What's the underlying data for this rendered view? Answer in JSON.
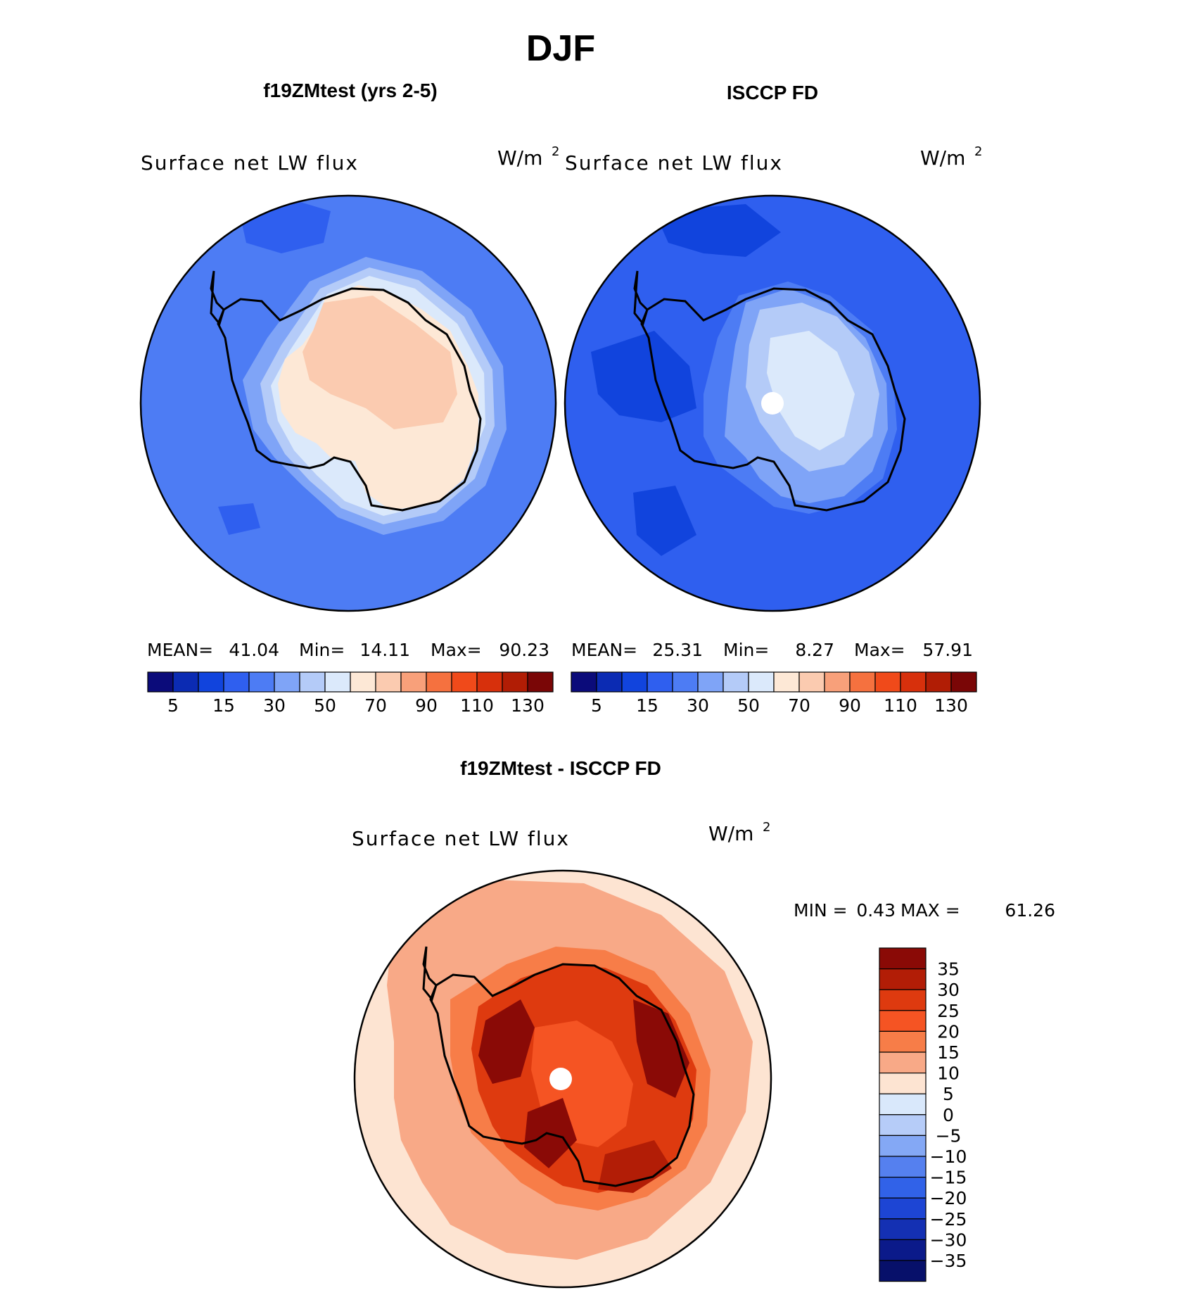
{
  "chart_data": {
    "type": "polar-contour-maps",
    "season": "DJF",
    "variable": "Surface net LW flux",
    "units_prefix": "W/m",
    "units_exp": "2",
    "region": "Antarctica, south polar stereographic",
    "panels": [
      {
        "title": "f19ZMtest (yrs 2-5)",
        "stats": {
          "mean_label": "MEAN=",
          "mean": "41.04",
          "min_label": "Min=",
          "min": "14.11",
          "max_label": "Max=",
          "max": "90.23"
        },
        "ocean_value": 40,
        "continent_value": 70
      },
      {
        "title": "ISCCP FD",
        "stats": {
          "mean_label": "MEAN=",
          "mean": "25.31",
          "min_label": "Min=",
          "min": "8.27",
          "max_label": "Max=",
          "max": "57.91"
        },
        "ocean_value": 25,
        "continent_value": 50
      },
      {
        "title": "f19ZMtest - ISCCP FD",
        "stats": {
          "min_label": "MIN =",
          "min": "0.43",
          "max_label": "MAX =",
          "max": "61.26"
        },
        "ocean_value": 5,
        "continent_value": 30
      }
    ],
    "abs_colorbar": {
      "levels": [
        5,
        10,
        15,
        20,
        30,
        40,
        50,
        60,
        70,
        80,
        90,
        100,
        110,
        120,
        130
      ],
      "tick_labels": [
        "5",
        "15",
        "30",
        "50",
        "70",
        "90",
        "110",
        "130"
      ],
      "colors": [
        "#0b0b7a",
        "#0b2bb3",
        "#1144dd",
        "#2f5fef",
        "#4d7cf4",
        "#7fa4f7",
        "#b4cbf8",
        "#dbe9fb",
        "#fde8d6",
        "#fbcbb0",
        "#f8a07a",
        "#f5713f",
        "#f04a1a",
        "#d7300c",
        "#b11d05",
        "#7a0606"
      ]
    },
    "diff_colorbar": {
      "levels": [
        -35,
        -30,
        -25,
        -20,
        -15,
        -10,
        -5,
        0,
        5,
        10,
        15,
        20,
        25,
        30,
        35
      ],
      "tick_labels": [
        "35",
        "30",
        "25",
        "20",
        "15",
        "10",
        "5",
        "0",
        "−5",
        "−10",
        "−15",
        "−20",
        "−25",
        "−30",
        "−35"
      ],
      "colors_top_to_bottom": [
        "#8a0a06",
        "#b21d06",
        "#de3a0f",
        "#f55423",
        "#f77d48",
        "#f8a987",
        "#fde4d2",
        "#d9e8fb",
        "#b6ccf8",
        "#84a8f5",
        "#5580ef",
        "#3162e8",
        "#1d45d4",
        "#1430b3",
        "#0b1a8a",
        "#07106a"
      ]
    }
  }
}
